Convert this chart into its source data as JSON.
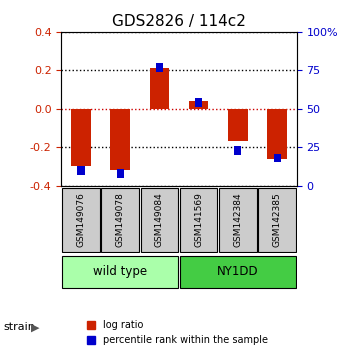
{
  "title": "GDS2826 / 114c2",
  "samples": [
    "GSM149076",
    "GSM149078",
    "GSM149084",
    "GSM141569",
    "GSM142384",
    "GSM142385"
  ],
  "log_ratio": [
    -0.3,
    -0.32,
    0.21,
    0.04,
    -0.17,
    -0.26
  ],
  "percentile_rank": [
    10,
    8,
    77,
    54,
    23,
    18
  ],
  "ylim_left": [
    -0.4,
    0.4
  ],
  "ylim_right": [
    0,
    100
  ],
  "yticks_left": [
    -0.4,
    -0.2,
    0.0,
    0.2,
    0.4
  ],
  "yticks_right": [
    0,
    25,
    50,
    75,
    100
  ],
  "ytick_labels_right": [
    "0",
    "25",
    "50",
    "75",
    "100%"
  ],
  "strain_groups": [
    {
      "label": "wild type",
      "start": 0,
      "end": 3,
      "color": "#aaffaa"
    },
    {
      "label": "NY1DD",
      "start": 3,
      "end": 6,
      "color": "#44cc44"
    }
  ],
  "strain_label": "strain",
  "bar_color_red": "#cc2200",
  "bar_color_blue": "#0000cc",
  "dotted_line_color_red": "#cc0000",
  "dotted_line_color_black": "#000000",
  "bg_color": "#ffffff",
  "sample_box_color": "#cccccc",
  "bar_width": 0.5,
  "legend_red_label": "log ratio",
  "legend_blue_label": "percentile rank within the sample"
}
